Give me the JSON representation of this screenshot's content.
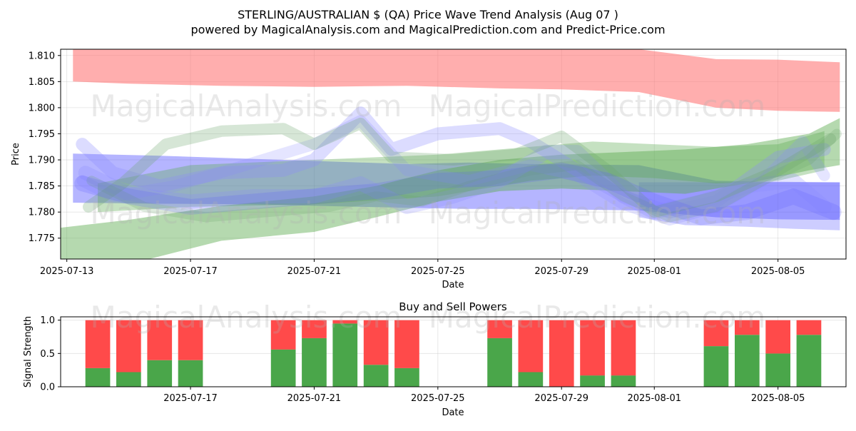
{
  "title_line1": "STERLING/AUSTRALIAN $ (QA) Price Wave Trend Analysis (Aug 07 )",
  "title_line2": "powered by MagicalAnalysis.com and MagicalPrediction.com and Predict-Price.com",
  "watermarks": {
    "top_left": "MagicalAnalysis.com",
    "top_right": "MagicalPrediction.com",
    "mid_left": "MagicalAnalysis.com",
    "mid_right": "MagicalPrediction.com",
    "bottom_left": "MagicalAnalysis.com",
    "bottom_right": "MagicalPrediction.com"
  },
  "colors": {
    "red_band": "#ff6b6b",
    "blue_band": "#5b5bff",
    "green_band": "#5aaa4e",
    "buy": "#4aa64a",
    "sell": "#ff4a4a"
  },
  "chart_data": [
    {
      "type": "area",
      "title": "",
      "xlabel": "Date",
      "ylabel": "Price",
      "x_ticks": [
        "2025-07-13",
        "2025-07-17",
        "2025-07-21",
        "2025-07-25",
        "2025-07-29",
        "2025-08-01",
        "2025-08-05"
      ],
      "y_ticks": [
        "1.775",
        "1.780",
        "1.785",
        "1.790",
        "1.795",
        "1.800",
        "1.805",
        "1.810"
      ],
      "ylim": [
        1.771,
        1.8112
      ],
      "xlim_days": [
        -0.2,
        25.2
      ],
      "x_origin_date": "2025-07-13",
      "grid": true,
      "bands": [
        {
          "name": "red-upper",
          "color": "#ff6b6b",
          "opacity": 0.55,
          "x_days": [
            0.2,
            2,
            5,
            8,
            11,
            14,
            16,
            18.5,
            21,
            23,
            25
          ],
          "upper": [
            1.8112,
            1.8112,
            1.8112,
            1.8112,
            1.8112,
            1.8112,
            1.8112,
            1.8112,
            1.8093,
            1.8092,
            1.8087
          ],
          "lower": [
            1.805,
            1.8046,
            1.8042,
            1.804,
            1.8042,
            1.8037,
            1.8035,
            1.803,
            1.8,
            1.7994,
            1.7992
          ]
        },
        {
          "name": "blue-wide",
          "color": "#5b5bff",
          "opacity": 0.45,
          "x_days": [
            0.2,
            3,
            6,
            8,
            11,
            13,
            15,
            18.5,
            21,
            23,
            25
          ],
          "upper": [
            1.7912,
            1.7908,
            1.7902,
            1.7898,
            1.7892,
            1.7895,
            1.7892,
            1.789,
            1.786,
            1.7858,
            1.7857
          ],
          "lower": [
            1.7818,
            1.7816,
            1.7815,
            1.7812,
            1.7808,
            1.7806,
            1.7806,
            1.7803,
            1.779,
            1.7786,
            1.7785
          ]
        },
        {
          "name": "blue-wide-2",
          "color": "#5b5bff",
          "opacity": 0.3,
          "x_days": [
            18.5,
            20,
            22,
            23.5,
            25
          ],
          "upper": [
            1.7857,
            1.7857,
            1.7857,
            1.7857,
            1.7857
          ],
          "lower": [
            1.779,
            1.7775,
            1.7772,
            1.7768,
            1.7765
          ]
        },
        {
          "name": "green-rising",
          "color": "#5aaa4e",
          "opacity": 0.45,
          "x_days": [
            -0.2,
            2,
            5,
            8,
            10,
            12,
            14,
            16,
            18,
            20,
            22,
            24,
            25
          ],
          "upper": [
            1.777,
            1.7785,
            1.7812,
            1.783,
            1.785,
            1.788,
            1.79,
            1.791,
            1.7915,
            1.792,
            1.793,
            1.795,
            1.798
          ],
          "lower": [
            1.771,
            1.77,
            1.7745,
            1.7762,
            1.779,
            1.782,
            1.784,
            1.7845,
            1.784,
            1.7835,
            1.7855,
            1.788,
            1.789
          ]
        },
        {
          "name": "green-flat",
          "color": "#5aaa4e",
          "opacity": 0.35,
          "x_days": [
            1,
            4,
            8,
            12,
            15,
            17,
            19,
            21,
            23,
            24.5
          ],
          "upper": [
            1.7855,
            1.789,
            1.79,
            1.791,
            1.7925,
            1.7935,
            1.793,
            1.7925,
            1.793,
            1.7955
          ],
          "lower": [
            1.78,
            1.781,
            1.7815,
            1.783,
            1.786,
            1.787,
            1.7865,
            1.7855,
            1.786,
            1.788
          ]
        }
      ],
      "waves": [
        {
          "color": "#8a8aff",
          "opacity": 0.3,
          "width": 18,
          "x_days": [
            0.5,
            1.5,
            3,
            5,
            7,
            8,
            9.5,
            10.5,
            12,
            14,
            15,
            16.5,
            18,
            19.5,
            21,
            23,
            24.5
          ],
          "y": [
            1.793,
            1.7875,
            1.785,
            1.7875,
            1.788,
            1.79,
            1.799,
            1.792,
            1.795,
            1.796,
            1.7935,
            1.788,
            1.783,
            1.78,
            1.782,
            1.7905,
            1.792
          ]
        },
        {
          "color": "#8a8aff",
          "opacity": 0.25,
          "width": 20,
          "x_days": [
            0.6,
            2,
            4,
            6,
            8,
            9.5,
            11,
            12.5,
            14,
            15.5,
            16.5,
            18,
            19,
            20.5,
            22,
            23.5,
            24.5
          ],
          "y": [
            1.7875,
            1.7835,
            1.782,
            1.783,
            1.783,
            1.7855,
            1.781,
            1.783,
            1.786,
            1.7915,
            1.7915,
            1.783,
            1.78,
            1.782,
            1.785,
            1.786,
            1.781
          ]
        },
        {
          "color": "#8a8aff",
          "opacity": 0.22,
          "width": 16,
          "x_days": [
            0.5,
            1.5,
            3.5,
            5.5,
            8,
            9.5,
            11,
            13,
            15,
            16.5,
            18,
            19.5,
            21,
            22.5,
            23.8,
            24.5
          ],
          "y": [
            1.786,
            1.783,
            1.785,
            1.7885,
            1.793,
            1.7975,
            1.788,
            1.786,
            1.789,
            1.787,
            1.7815,
            1.7785,
            1.781,
            1.786,
            1.7935,
            1.787
          ]
        },
        {
          "color": "#6aa66a",
          "opacity": 0.28,
          "width": 16,
          "x_days": [
            0.7,
            1.8,
            3.2,
            5,
            7,
            8,
            9.5,
            10.5,
            12.5,
            14.5,
            16,
            17.5,
            19,
            21,
            23,
            24.7
          ],
          "y": [
            1.781,
            1.7855,
            1.793,
            1.7955,
            1.796,
            1.793,
            1.797,
            1.7905,
            1.79,
            1.791,
            1.7945,
            1.788,
            1.78,
            1.783,
            1.788,
            1.794
          ]
        },
        {
          "color": "#6aa66a",
          "opacity": 0.22,
          "width": 14,
          "x_days": [
            0.8,
            2.5,
            4.5,
            6.5,
            8.5,
            10,
            11.5,
            13,
            15,
            16.5,
            18,
            19.5,
            21,
            22.5,
            24,
            24.9
          ],
          "y": [
            1.786,
            1.781,
            1.779,
            1.78,
            1.781,
            1.783,
            1.782,
            1.785,
            1.788,
            1.789,
            1.783,
            1.779,
            1.781,
            1.786,
            1.79,
            1.795
          ]
        },
        {
          "color": "#5b5bff",
          "opacity": 0.2,
          "width": 22,
          "x_days": [
            0.5,
            2,
            4,
            6,
            8,
            10,
            12,
            14,
            16,
            17.5,
            19,
            20.5,
            22,
            23.5,
            24.8
          ],
          "y": [
            1.7855,
            1.783,
            1.781,
            1.782,
            1.783,
            1.784,
            1.786,
            1.7865,
            1.788,
            1.786,
            1.782,
            1.779,
            1.78,
            1.783,
            1.78
          ]
        }
      ]
    },
    {
      "type": "bar",
      "title": "Buy and Sell Powers",
      "xlabel": "Date",
      "ylabel": "Signal Strength",
      "x_ticks": [
        "2025-07-17",
        "2025-07-21",
        "2025-07-25",
        "2025-07-29",
        "2025-08-01",
        "2025-08-05"
      ],
      "y_ticks": [
        "0.0",
        "0.5",
        "1.0"
      ],
      "ylim": [
        0,
        1.05
      ],
      "grid": true,
      "series": [
        {
          "name": "Buy",
          "color": "#4aa64a",
          "values": [
            0.28,
            0.22,
            0.4,
            0.4,
            0.56,
            0.73,
            0.95,
            0.33,
            0.28,
            0.73,
            0.22,
            0.0,
            0.17,
            0.17,
            0.61,
            0.78,
            0.5,
            0.78
          ]
        },
        {
          "name": "Sell",
          "color": "#ff4a4a",
          "values": [
            0.72,
            0.78,
            0.6,
            0.6,
            0.44,
            0.27,
            0.05,
            0.67,
            0.72,
            0.27,
            0.78,
            1.0,
            0.83,
            0.83,
            0.39,
            0.22,
            0.5,
            0.22
          ]
        }
      ],
      "dates_days": [
        1,
        2,
        3,
        4,
        7,
        8,
        9,
        10,
        11,
        14,
        15,
        16,
        17,
        18,
        21,
        22,
        23,
        24
      ]
    }
  ]
}
